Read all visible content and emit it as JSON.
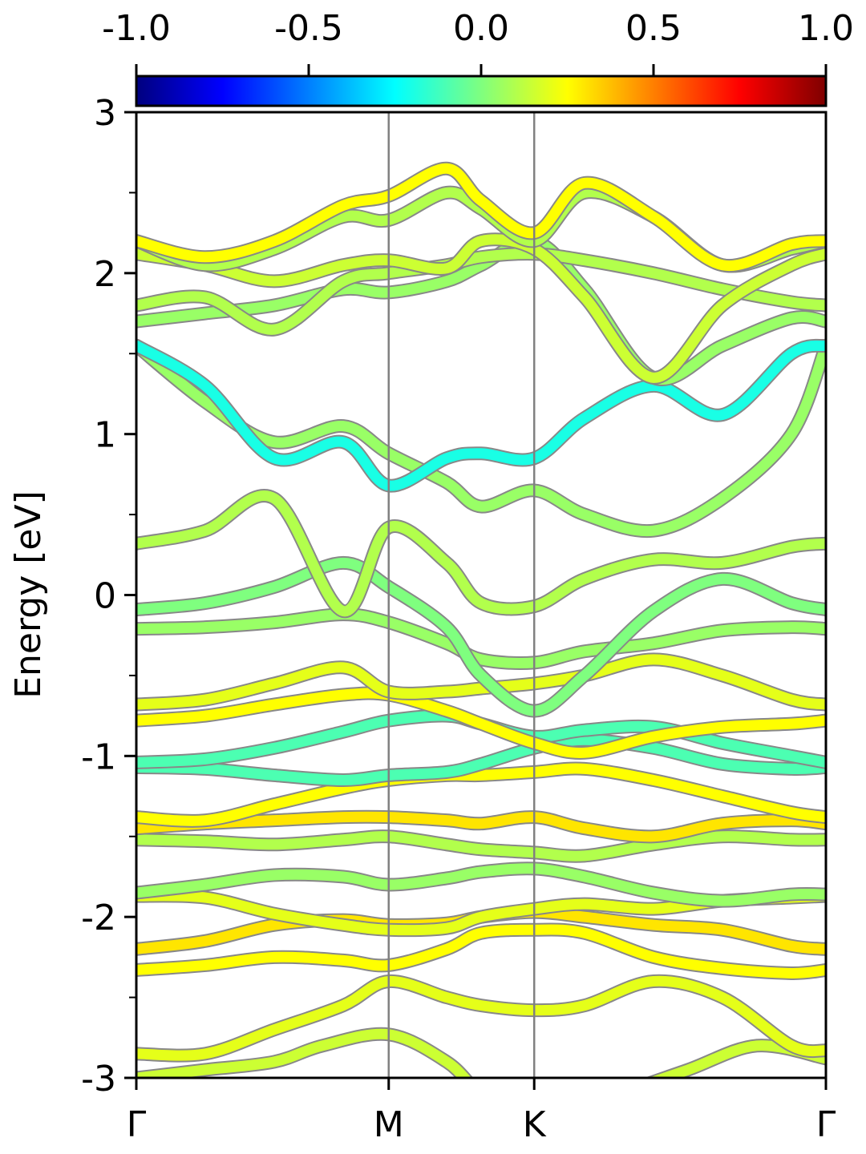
{
  "chart_data": {
    "type": "line",
    "title": "",
    "xlabel": "",
    "ylabel": "Energy [eV]",
    "ylim": [
      -3,
      3
    ],
    "y_ticks": [
      "-3",
      "-2",
      "-1",
      "0",
      "1",
      "2",
      "3"
    ],
    "y_minor_ticks": [
      -2.5,
      -1.5,
      -0.5,
      0.5,
      1.5,
      2.5
    ],
    "grid": false,
    "k_path": [
      {
        "label": "Γ",
        "k": 0
      },
      {
        "label": "M",
        "k": 0.366
      },
      {
        "label": "K",
        "k": 0.577
      },
      {
        "label": "Γ",
        "k": 1.0
      }
    ],
    "colorbar": {
      "colormap": "jet",
      "range": [
        -1.0,
        1.0
      ],
      "placement": "top",
      "ticks": [
        "-1.0",
        "-0.5",
        "0.0",
        "0.5",
        "1.0"
      ],
      "colors": [
        "#00007f",
        "#0000ff",
        "#007fff",
        "#00ffff",
        "#7fff7f",
        "#ffff00",
        "#ff7f00",
        "#ff0000",
        "#7f0000"
      ]
    },
    "band_colors": {
      "mostly_green": "#7fff7f",
      "yellow_green": "#b5ff48",
      "cyan_green": "#48ffb5",
      "outline": "#888888"
    },
    "note_k_units": "fraction of total path length",
    "bands": [
      {
        "k": [
          0,
          0.1,
          0.2,
          0.27,
          0.366,
          0.45,
          0.5,
          0.577,
          0.7,
          0.8,
          0.9,
          1.0
        ],
        "energy": [
          -3.0,
          -2.95,
          -2.9,
          -2.8,
          -2.73,
          -2.9,
          -3.1,
          -3.3,
          -3.1,
          -2.95,
          -2.8,
          -2.88
        ],
        "value": 0.15
      },
      {
        "k": [
          0,
          0.1,
          0.2,
          0.3,
          0.366,
          0.45,
          0.5,
          0.577,
          0.65,
          0.75,
          0.85,
          0.95,
          1.0
        ],
        "energy": [
          -2.85,
          -2.85,
          -2.7,
          -2.55,
          -2.4,
          -2.5,
          -2.55,
          -2.58,
          -2.55,
          -2.4,
          -2.5,
          -2.8,
          -2.83
        ],
        "value": 0.2
      },
      {
        "k": [
          0,
          0.1,
          0.2,
          0.3,
          0.366,
          0.45,
          0.5,
          0.577,
          0.65,
          0.75,
          0.85,
          0.95,
          1.0
        ],
        "energy": [
          -2.33,
          -2.3,
          -2.25,
          -2.27,
          -2.3,
          -2.2,
          -2.1,
          -2.08,
          -2.1,
          -2.25,
          -2.32,
          -2.35,
          -2.33
        ],
        "value": 0.25
      },
      {
        "k": [
          0,
          0.1,
          0.2,
          0.3,
          0.366,
          0.45,
          0.5,
          0.577,
          0.65,
          0.75,
          0.85,
          0.95,
          1.0
        ],
        "energy": [
          -2.2,
          -2.15,
          -2.05,
          -2.02,
          -2.05,
          -2.04,
          -2.0,
          -1.97,
          -2.0,
          -2.05,
          -2.08,
          -2.18,
          -2.2
        ],
        "value": 0.3
      },
      {
        "k": [
          0,
          0.1,
          0.2,
          0.3,
          0.366,
          0.45,
          0.5,
          0.577,
          0.65,
          0.75,
          0.85,
          0.95,
          1.0
        ],
        "energy": [
          -1.87,
          -1.88,
          -1.98,
          -2.05,
          -2.08,
          -2.07,
          -2.0,
          -1.95,
          -1.92,
          -1.95,
          -1.9,
          -1.88,
          -1.87
        ],
        "value": 0.2
      },
      {
        "k": [
          0,
          0.1,
          0.2,
          0.3,
          0.366,
          0.45,
          0.5,
          0.577,
          0.65,
          0.75,
          0.85,
          0.95,
          1.0
        ],
        "energy": [
          -1.85,
          -1.8,
          -1.74,
          -1.75,
          -1.8,
          -1.76,
          -1.72,
          -1.7,
          -1.75,
          -1.85,
          -1.9,
          -1.86,
          -1.86
        ],
        "value": 0.05
      },
      {
        "k": [
          0,
          0.1,
          0.2,
          0.3,
          0.366,
          0.45,
          0.5,
          0.577,
          0.65,
          0.75,
          0.85,
          0.95,
          1.0
        ],
        "energy": [
          -1.52,
          -1.53,
          -1.55,
          -1.52,
          -1.5,
          -1.55,
          -1.58,
          -1.6,
          -1.62,
          -1.55,
          -1.5,
          -1.52,
          -1.52
        ],
        "value": 0.1
      },
      {
        "k": [
          0,
          0.1,
          0.2,
          0.3,
          0.366,
          0.45,
          0.5,
          0.577,
          0.65,
          0.75,
          0.85,
          0.95,
          1.0
        ],
        "energy": [
          -1.45,
          -1.42,
          -1.4,
          -1.38,
          -1.38,
          -1.4,
          -1.42,
          -1.38,
          -1.45,
          -1.5,
          -1.42,
          -1.4,
          -1.42
        ],
        "value": 0.3
      },
      {
        "k": [
          0,
          0.1,
          0.2,
          0.3,
          0.366,
          0.45,
          0.5,
          0.577,
          0.65,
          0.75,
          0.85,
          0.95,
          1.0
        ],
        "energy": [
          -1.38,
          -1.4,
          -1.3,
          -1.2,
          -1.15,
          -1.12,
          -1.12,
          -1.1,
          -1.08,
          -1.15,
          -1.25,
          -1.35,
          -1.38
        ],
        "value": 0.25
      },
      {
        "k": [
          0,
          0.1,
          0.2,
          0.3,
          0.366,
          0.45,
          0.5,
          0.577,
          0.65,
          0.75,
          0.85,
          0.95,
          1.0
        ],
        "energy": [
          -1.07,
          -1.08,
          -1.12,
          -1.15,
          -1.12,
          -1.1,
          -1.05,
          -0.95,
          -0.9,
          -0.95,
          -1.05,
          -1.08,
          -1.07
        ],
        "value": -0.1
      },
      {
        "k": [
          0,
          0.1,
          0.2,
          0.3,
          0.366,
          0.45,
          0.5,
          0.577,
          0.65,
          0.75,
          0.85,
          0.95,
          1.0
        ],
        "energy": [
          -1.04,
          -1.02,
          -0.95,
          -0.85,
          -0.78,
          -0.75,
          -0.8,
          -0.88,
          -0.84,
          -0.82,
          -0.92,
          -1.0,
          -1.04
        ],
        "value": -0.1
      },
      {
        "k": [
          0,
          0.1,
          0.2,
          0.3,
          0.366,
          0.45,
          0.5,
          0.577,
          0.65,
          0.75,
          0.85,
          0.95,
          1.0
        ],
        "energy": [
          -0.78,
          -0.75,
          -0.68,
          -0.62,
          -0.62,
          -0.72,
          -0.8,
          -0.92,
          -0.98,
          -0.88,
          -0.82,
          -0.8,
          -0.78
        ],
        "value": 0.25
      },
      {
        "k": [
          0,
          0.1,
          0.2,
          0.3,
          0.366,
          0.45,
          0.5,
          0.577,
          0.65,
          0.75,
          0.85,
          0.95,
          1.0
        ],
        "energy": [
          -0.68,
          -0.65,
          -0.55,
          -0.45,
          -0.6,
          -0.6,
          -0.58,
          -0.55,
          -0.5,
          -0.4,
          -0.5,
          -0.65,
          -0.68
        ],
        "value": 0.2
      },
      {
        "k": [
          0,
          0.1,
          0.2,
          0.3,
          0.366,
          0.45,
          0.5,
          0.577,
          0.65,
          0.75,
          0.85,
          0.95,
          1.0
        ],
        "energy": [
          -0.21,
          -0.2,
          -0.17,
          -0.12,
          -0.17,
          -0.3,
          -0.4,
          -0.42,
          -0.35,
          -0.3,
          -0.22,
          -0.2,
          -0.21
        ],
        "value": 0.05
      },
      {
        "k": [
          0,
          0.1,
          0.2,
          0.3,
          0.366,
          0.45,
          0.5,
          0.577,
          0.65,
          0.75,
          0.85,
          0.95,
          1.0
        ],
        "energy": [
          -0.09,
          -0.05,
          0.05,
          0.2,
          0.05,
          -0.2,
          -0.5,
          -0.72,
          -0.5,
          -0.1,
          0.1,
          -0.05,
          -0.09
        ],
        "value": 0.0
      },
      {
        "k": [
          0,
          0.1,
          0.2,
          0.3,
          0.366,
          0.45,
          0.5,
          0.577,
          0.65,
          0.75,
          0.85,
          0.95,
          1.0
        ],
        "energy": [
          0.32,
          0.4,
          0.6,
          -0.1,
          0.42,
          0.2,
          -0.05,
          -0.07,
          0.1,
          0.22,
          0.2,
          0.3,
          0.32
        ],
        "value": 0.1
      },
      {
        "k": [
          0,
          0.1,
          0.2,
          0.3,
          0.366,
          0.45,
          0.5,
          0.577,
          0.65,
          0.75,
          0.85,
          0.95,
          1.0
        ],
        "energy": [
          1.55,
          1.2,
          0.95,
          1.05,
          0.88,
          0.7,
          0.55,
          0.65,
          0.5,
          0.4,
          0.6,
          1.0,
          1.55
        ],
        "value": 0.05
      },
      {
        "k": [
          0,
          0.1,
          0.2,
          0.3,
          0.366,
          0.45,
          0.5,
          0.577,
          0.65,
          0.75,
          0.85,
          0.95,
          1.0
        ],
        "energy": [
          1.55,
          1.3,
          0.85,
          0.95,
          0.68,
          0.85,
          0.88,
          0.85,
          1.1,
          1.3,
          1.12,
          1.5,
          1.55
        ],
        "value": -0.2
      },
      {
        "k": [
          0,
          0.1,
          0.2,
          0.3,
          0.366,
          0.45,
          0.5,
          0.577,
          0.65,
          0.75,
          0.85,
          0.95,
          1.0
        ],
        "energy": [
          1.7,
          1.75,
          1.8,
          1.9,
          1.88,
          1.95,
          2.05,
          2.2,
          1.9,
          1.35,
          1.55,
          1.72,
          1.7
        ],
        "value": 0.05
      },
      {
        "k": [
          0,
          0.1,
          0.2,
          0.3,
          0.366,
          0.45,
          0.5,
          0.577,
          0.65,
          0.75,
          0.85,
          0.95,
          1.0
        ],
        "energy": [
          1.8,
          1.85,
          1.65,
          1.95,
          2.0,
          2.05,
          2.1,
          2.12,
          2.08,
          2.0,
          1.9,
          1.82,
          1.8
        ],
        "value": 0.1
      },
      {
        "k": [
          0,
          0.1,
          0.2,
          0.3,
          0.366,
          0.45,
          0.5,
          0.577,
          0.65,
          0.75,
          0.85,
          0.95,
          1.0
        ],
        "energy": [
          2.12,
          2.05,
          1.95,
          2.05,
          2.08,
          2.03,
          2.2,
          2.15,
          1.85,
          1.35,
          1.8,
          2.05,
          2.12
        ],
        "value": 0.15
      },
      {
        "k": [
          0,
          0.1,
          0.2,
          0.3,
          0.366,
          0.45,
          0.5,
          0.577,
          0.65,
          0.75,
          0.85,
          0.95,
          1.0
        ],
        "energy": [
          2.2,
          2.05,
          2.15,
          2.35,
          2.33,
          2.5,
          2.4,
          2.2,
          2.5,
          2.35,
          2.05,
          2.15,
          2.2
        ],
        "value": 0.1
      },
      {
        "k": [
          0,
          0.1,
          0.2,
          0.3,
          0.366,
          0.45,
          0.5,
          0.577,
          0.65,
          0.75,
          0.85,
          0.95,
          1.0
        ],
        "energy": [
          2.2,
          2.1,
          2.2,
          2.42,
          2.48,
          2.65,
          2.45,
          2.25,
          2.56,
          2.35,
          2.05,
          2.18,
          2.2
        ],
        "value": 0.25
      }
    ]
  }
}
